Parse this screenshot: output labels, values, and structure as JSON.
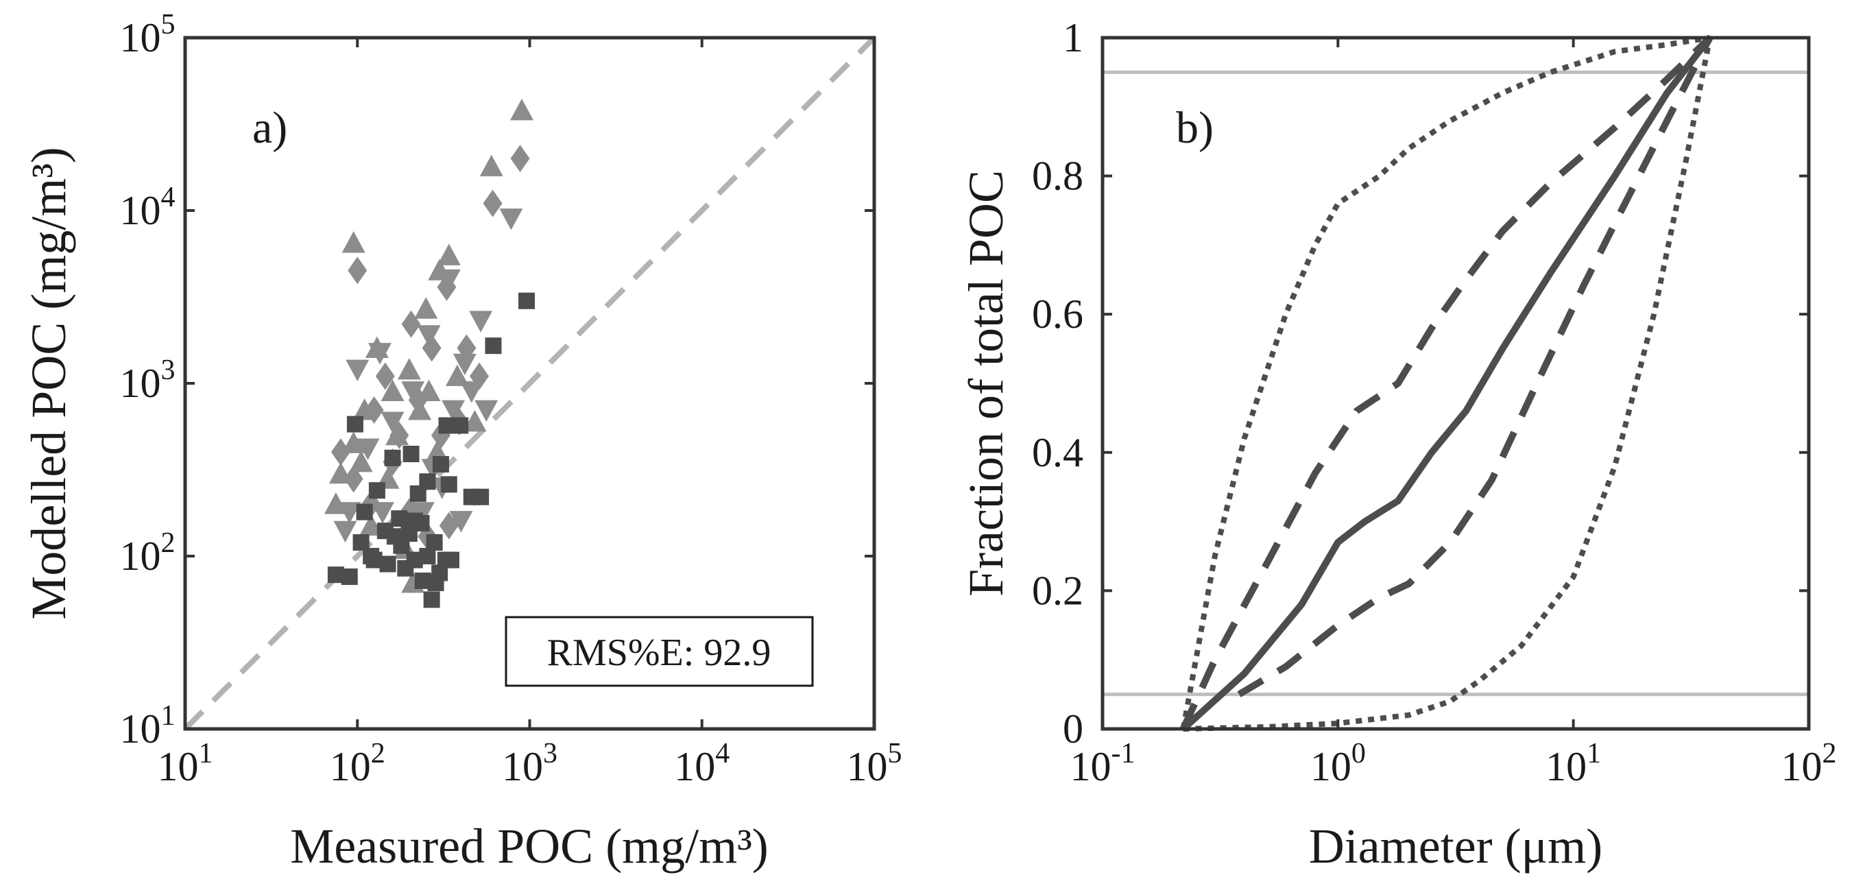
{
  "chart_data": [
    {
      "panel": "a)",
      "type": "scatter",
      "xscale": "log",
      "yscale": "log",
      "xlabel": "Measured POC (mg/m³)",
      "ylabel": "Modelled POC (mg/m³)",
      "xlim": [
        10,
        100000
      ],
      "ylim": [
        10,
        100000
      ],
      "ticks": [
        {
          "value": 10,
          "base": "10",
          "exp": "1"
        },
        {
          "value": 100,
          "base": "10",
          "exp": "2"
        },
        {
          "value": 1000,
          "base": "10",
          "exp": "3"
        },
        {
          "value": 10000,
          "base": "10",
          "exp": "4"
        },
        {
          "value": 100000,
          "base": "10",
          "exp": "5"
        }
      ],
      "reference_line": {
        "style": "dashed",
        "color": "#b3b3b3",
        "from": [
          10,
          10
        ],
        "to": [
          100000,
          100000
        ]
      },
      "annotation": "RMS%E: 92.9",
      "colors": {
        "triangle_up": "#8c8c8c",
        "triangle_down": "#8c8c8c",
        "diamond": "#8c8c8c",
        "square": "#4d4d4d"
      },
      "series": [
        {
          "name": "triangle-up",
          "marker": "triangle-up",
          "points": [
            [
              95,
              6500
            ],
            [
              95,
              450
            ],
            [
              80,
              300
            ],
            [
              130,
              1600
            ],
            [
              160,
              900
            ],
            [
              200,
              1200
            ],
            [
              250,
              2700
            ],
            [
              300,
              4500
            ],
            [
              340,
              5500
            ],
            [
              600,
              18000
            ],
            [
              900,
              38000
            ],
            [
              110,
              700
            ],
            [
              170,
              500
            ],
            [
              230,
              700
            ],
            [
              290,
              400
            ],
            [
              150,
              280
            ],
            [
              190,
              110
            ],
            [
              210,
              70
            ],
            [
              75,
              200
            ],
            [
              105,
              350
            ],
            [
              260,
              900
            ],
            [
              380,
              1100
            ],
            [
              480,
              600
            ],
            [
              120,
              150
            ]
          ]
        },
        {
          "name": "triangle-down",
          "marker": "triangle-down",
          "points": [
            [
              100,
              1200
            ],
            [
              135,
              1500
            ],
            [
              210,
              900
            ],
            [
              260,
              1900
            ],
            [
              340,
              4000
            ],
            [
              420,
              1300
            ],
            [
              520,
              2300
            ],
            [
              780,
              9000
            ],
            [
              90,
              180
            ],
            [
              140,
              180
            ],
            [
              185,
              160
            ],
            [
              240,
              180
            ],
            [
              310,
              250
            ],
            [
              360,
              700
            ],
            [
              460,
              900
            ],
            [
              560,
              700
            ],
            [
              160,
              600
            ],
            [
              115,
              420
            ],
            [
              275,
              320
            ],
            [
              85,
              140
            ],
            [
              400,
              160
            ]
          ]
        },
        {
          "name": "diamond",
          "marker": "diamond",
          "points": [
            [
              100,
              4500
            ],
            [
              145,
              1100
            ],
            [
              205,
              2200
            ],
            [
              270,
              1600
            ],
            [
              330,
              3600
            ],
            [
              430,
              1600
            ],
            [
              610,
              11000
            ],
            [
              880,
              20000
            ],
            [
              80,
              400
            ],
            [
              125,
              700
            ],
            [
              175,
              500
            ],
            [
              225,
              800
            ],
            [
              305,
              500
            ],
            [
              390,
              600
            ],
            [
              510,
              1100
            ],
            [
              120,
              200
            ],
            [
              255,
              130
            ],
            [
              95,
              280
            ],
            [
              160,
              350
            ],
            [
              200,
              180
            ],
            [
              340,
              150
            ]
          ]
        },
        {
          "name": "square",
          "marker": "square",
          "points": [
            [
              97,
              580
            ],
            [
              160,
              370
            ],
            [
              205,
              390
            ],
            [
              255,
              270
            ],
            [
              305,
              340
            ],
            [
              330,
              570
            ],
            [
              395,
              570
            ],
            [
              615,
              1650
            ],
            [
              960,
              3000
            ],
            [
              75,
              78
            ],
            [
              90,
              76
            ],
            [
              105,
              120
            ],
            [
              125,
              95
            ],
            [
              145,
              140
            ],
            [
              165,
              130
            ],
            [
              180,
              115
            ],
            [
              200,
              135
            ],
            [
              215,
              160
            ],
            [
              235,
              155
            ],
            [
              255,
              100
            ],
            [
              280,
              120
            ],
            [
              300,
              80
            ],
            [
              325,
              95
            ],
            [
              350,
              95
            ],
            [
              520,
              220
            ],
            [
              460,
              220
            ],
            [
              110,
              180
            ],
            [
              130,
              240
            ],
            [
              175,
              165
            ],
            [
              225,
              230
            ],
            [
              270,
              56
            ],
            [
              285,
              70
            ],
            [
              240,
              72
            ],
            [
              150,
              90
            ],
            [
              190,
              85
            ],
            [
              120,
              100
            ],
            [
              340,
              260
            ],
            [
              215,
              95
            ]
          ]
        }
      ]
    },
    {
      "panel": "b)",
      "type": "line",
      "xscale": "log",
      "xlabel": "Diameter (μm)",
      "ylabel": "Fraction of total POC",
      "xlim": [
        0.1,
        100
      ],
      "ylim": [
        0,
        1
      ],
      "xticks": [
        {
          "value": 0.1,
          "base": "10",
          "exp": "-1"
        },
        {
          "value": 1,
          "base": "10",
          "exp": "0"
        },
        {
          "value": 10,
          "base": "10",
          "exp": "1"
        },
        {
          "value": 100,
          "base": "10",
          "exp": "2"
        }
      ],
      "yticks": [
        0,
        0.2,
        0.4,
        0.6,
        0.8,
        1
      ],
      "ytick_labels": [
        "0",
        "0.2",
        "0.4",
        "0.6",
        "0.8",
        "1"
      ],
      "hlines": [
        0.05,
        0.95
      ],
      "hline_color": "#bfbfbf",
      "line_color": "#4d4d4d",
      "series": [
        {
          "name": "median",
          "style": "solid",
          "x": [
            0.22,
            0.4,
            0.7,
            1.0,
            1.3,
            1.8,
            2.5,
            3.5,
            5.0,
            8.0,
            15.0,
            25.0,
            38.0
          ],
          "y": [
            0.0,
            0.08,
            0.18,
            0.27,
            0.3,
            0.33,
            0.4,
            0.46,
            0.55,
            0.66,
            0.8,
            0.92,
            1.0
          ]
        },
        {
          "name": "inner-upper",
          "style": "dashed",
          "x": [
            0.22,
            0.3,
            0.5,
            0.8,
            1.2,
            1.8,
            2.5,
            3.5,
            5.0,
            8.0,
            15.0,
            25.0,
            38.0
          ],
          "y": [
            0.0,
            0.1,
            0.24,
            0.37,
            0.46,
            0.5,
            0.58,
            0.65,
            0.72,
            0.79,
            0.87,
            0.94,
            1.0
          ]
        },
        {
          "name": "inner-lower",
          "style": "dashed",
          "x": [
            0.38,
            0.6,
            1.0,
            1.5,
            2.0,
            3.0,
            4.5,
            7.0,
            11.0,
            16.0,
            25.0,
            38.0
          ],
          "y": [
            0.05,
            0.09,
            0.15,
            0.19,
            0.21,
            0.27,
            0.36,
            0.5,
            0.64,
            0.75,
            0.88,
            1.0
          ]
        },
        {
          "name": "outer-upper",
          "style": "dotted",
          "x": [
            0.22,
            0.3,
            0.4,
            0.6,
            0.8,
            1.0,
            1.5,
            2.0,
            3.0,
            5.0,
            8.0,
            15.0,
            25.0,
            38.0
          ],
          "y": [
            0.0,
            0.25,
            0.42,
            0.6,
            0.7,
            0.76,
            0.8,
            0.84,
            0.88,
            0.92,
            0.95,
            0.98,
            0.99,
            1.0
          ]
        },
        {
          "name": "outer-lower",
          "style": "dotted",
          "x": [
            0.22,
            0.5,
            1.0,
            2.0,
            3.0,
            4.0,
            6.0,
            10.0,
            15.0,
            22.0,
            30.0,
            38.0
          ],
          "y": [
            0.0,
            0.003,
            0.008,
            0.02,
            0.04,
            0.07,
            0.12,
            0.22,
            0.38,
            0.6,
            0.82,
            1.0
          ]
        }
      ]
    }
  ]
}
